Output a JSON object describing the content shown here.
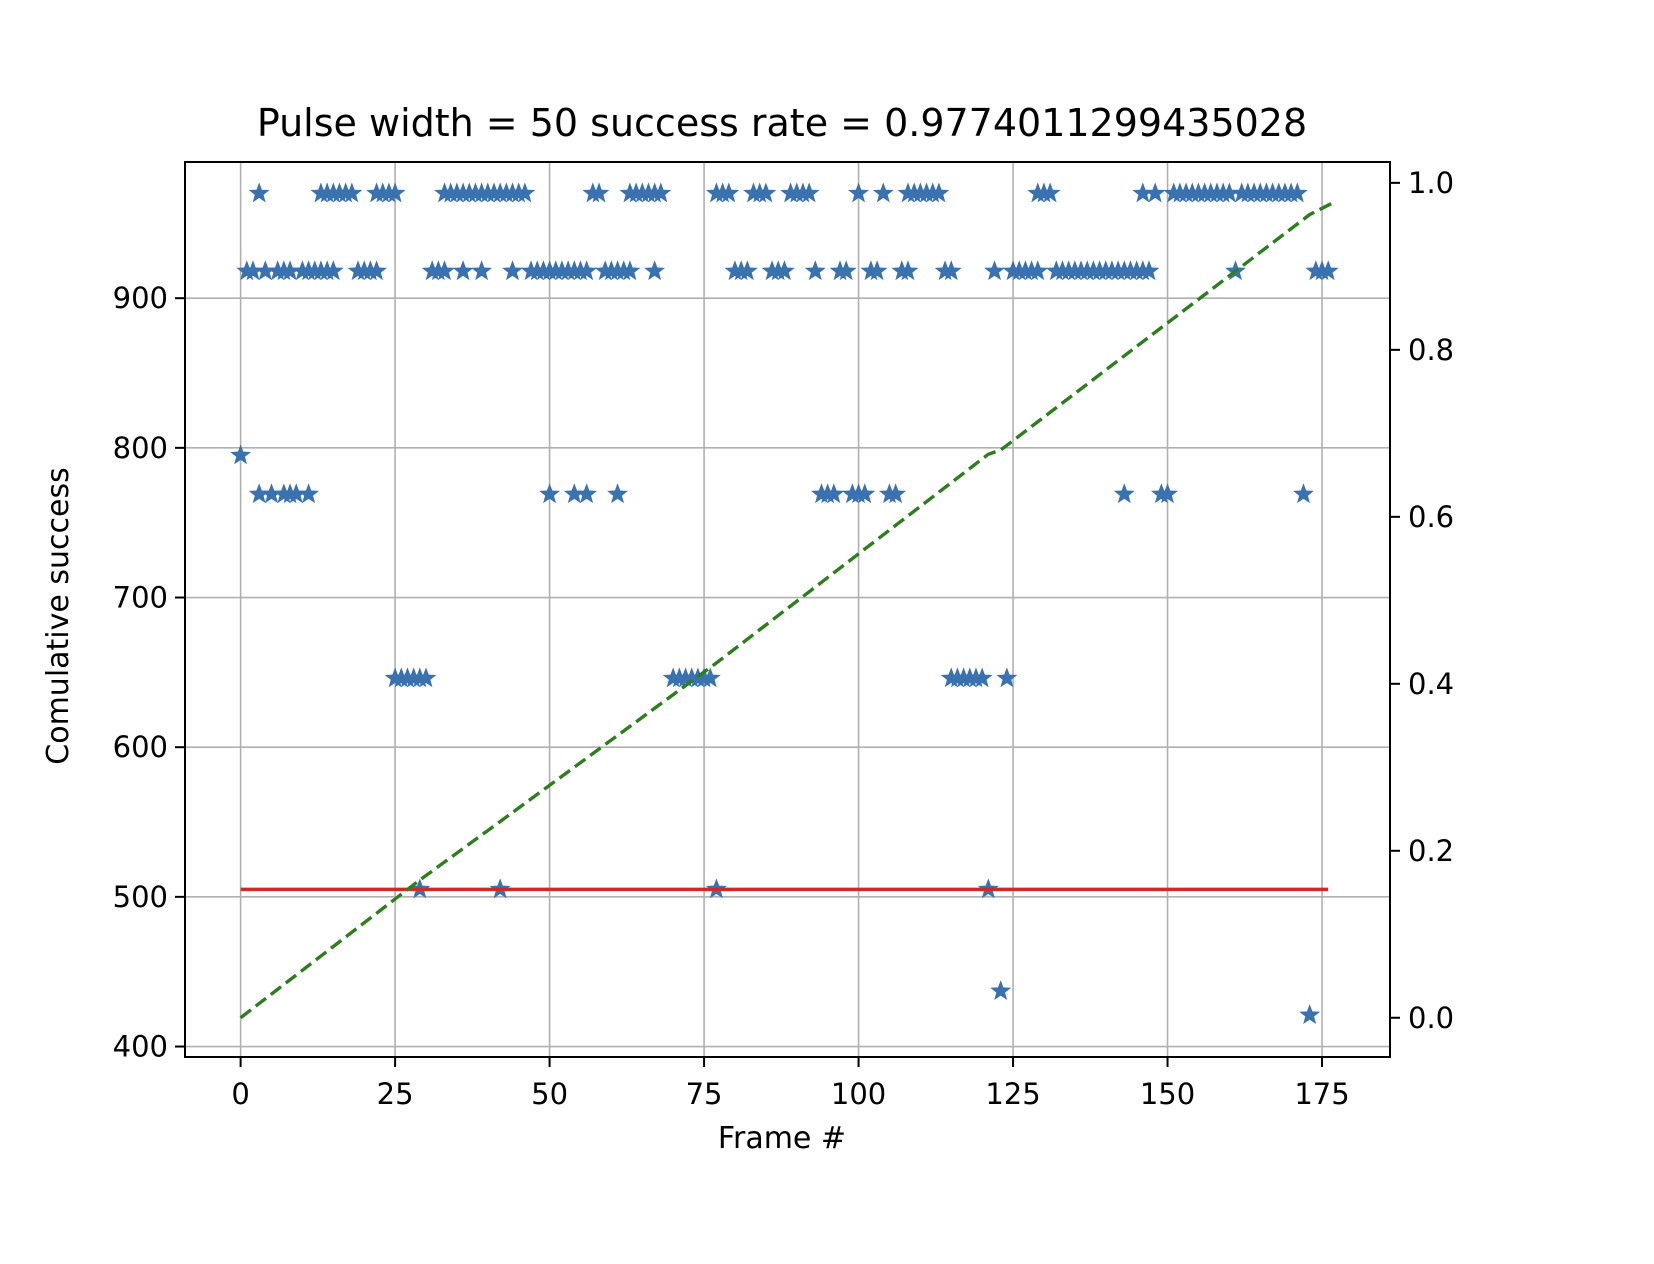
{
  "chart_data": {
    "type": "scatter",
    "title": "Pulse width =  50   success rate = 0.9774011299435028",
    "xlabel": "Frame #",
    "ylabel": "Comulative success",
    "y2label": "",
    "xlim": [
      -9,
      186
    ],
    "ylim": [
      393,
      991
    ],
    "y2lim": [
      -0.047,
      1.025
    ],
    "xticks": [
      0,
      25,
      50,
      75,
      100,
      125,
      150,
      175
    ],
    "yticks": [
      400,
      500,
      600,
      700,
      800,
      900
    ],
    "y2ticks": [
      0.0,
      0.2,
      0.4,
      0.6,
      0.8,
      1.0
    ],
    "xtick_labels": [
      "0",
      "25",
      "50",
      "75",
      "100",
      "125",
      "150",
      "175"
    ],
    "ytick_labels": [
      "400",
      "500",
      "600",
      "700",
      "800",
      "900"
    ],
    "y2tick_labels": [
      "0.0",
      "0.2",
      "0.4",
      "0.6",
      "0.8",
      "1.0"
    ],
    "grid": true,
    "legend": "none",
    "series": [
      {
        "axis": "left",
        "style": "star-markers",
        "color": "#3a72b0",
        "points": [
          [
            0,
            795
          ],
          [
            1,
            918
          ],
          [
            2,
            918
          ],
          [
            3,
            970
          ],
          [
            3,
            769
          ],
          [
            4,
            918
          ],
          [
            5,
            769
          ],
          [
            6,
            918
          ],
          [
            7,
            769
          ],
          [
            7,
            918
          ],
          [
            8,
            769
          ],
          [
            8,
            918
          ],
          [
            9,
            769
          ],
          [
            10,
            918
          ],
          [
            11,
            769
          ],
          [
            11,
            918
          ],
          [
            12,
            918
          ],
          [
            13,
            970
          ],
          [
            13,
            918
          ],
          [
            14,
            970
          ],
          [
            14,
            918
          ],
          [
            15,
            970
          ],
          [
            15,
            918
          ],
          [
            16,
            970
          ],
          [
            17,
            970
          ],
          [
            18,
            970
          ],
          [
            19,
            918
          ],
          [
            20,
            918
          ],
          [
            21,
            918
          ],
          [
            22,
            970
          ],
          [
            22,
            918
          ],
          [
            23,
            970
          ],
          [
            24,
            970
          ],
          [
            25,
            970
          ],
          [
            25,
            646
          ],
          [
            26,
            646
          ],
          [
            27,
            646
          ],
          [
            28,
            646
          ],
          [
            29,
            505
          ],
          [
            29,
            646
          ],
          [
            30,
            646
          ],
          [
            31,
            918
          ],
          [
            32,
            918
          ],
          [
            33,
            970
          ],
          [
            33,
            918
          ],
          [
            34,
            970
          ],
          [
            35,
            970
          ],
          [
            36,
            970
          ],
          [
            36,
            918
          ],
          [
            37,
            970
          ],
          [
            38,
            970
          ],
          [
            39,
            918
          ],
          [
            39,
            970
          ],
          [
            40,
            970
          ],
          [
            41,
            970
          ],
          [
            42,
            505
          ],
          [
            42,
            970
          ],
          [
            43,
            970
          ],
          [
            44,
            970
          ],
          [
            44,
            918
          ],
          [
            45,
            970
          ],
          [
            46,
            970
          ],
          [
            47,
            918
          ],
          [
            48,
            918
          ],
          [
            49,
            918
          ],
          [
            50,
            769
          ],
          [
            50,
            918
          ],
          [
            51,
            918
          ],
          [
            52,
            918
          ],
          [
            53,
            918
          ],
          [
            54,
            769
          ],
          [
            54,
            918
          ],
          [
            55,
            918
          ],
          [
            56,
            769
          ],
          [
            56,
            918
          ],
          [
            57,
            970
          ],
          [
            58,
            970
          ],
          [
            59,
            918
          ],
          [
            60,
            918
          ],
          [
            61,
            769
          ],
          [
            61,
            918
          ],
          [
            62,
            918
          ],
          [
            63,
            970
          ],
          [
            63,
            918
          ],
          [
            64,
            970
          ],
          [
            65,
            970
          ],
          [
            66,
            970
          ],
          [
            67,
            918
          ],
          [
            67,
            970
          ],
          [
            68,
            970
          ],
          [
            70,
            646
          ],
          [
            71,
            646
          ],
          [
            72,
            646
          ],
          [
            73,
            646
          ],
          [
            74,
            646
          ],
          [
            75,
            646
          ],
          [
            76,
            646
          ],
          [
            77,
            505
          ],
          [
            77,
            970
          ],
          [
            78,
            970
          ],
          [
            79,
            970
          ],
          [
            80,
            918
          ],
          [
            81,
            918
          ],
          [
            82,
            918
          ],
          [
            83,
            970
          ],
          [
            84,
            970
          ],
          [
            85,
            970
          ],
          [
            86,
            918
          ],
          [
            87,
            918
          ],
          [
            88,
            918
          ],
          [
            89,
            970
          ],
          [
            90,
            970
          ],
          [
            91,
            970
          ],
          [
            92,
            970
          ],
          [
            93,
            918
          ],
          [
            94,
            769
          ],
          [
            95,
            769
          ],
          [
            96,
            769
          ],
          [
            97,
            918
          ],
          [
            98,
            918
          ],
          [
            99,
            769
          ],
          [
            100,
            970
          ],
          [
            100,
            769
          ],
          [
            101,
            769
          ],
          [
            102,
            918
          ],
          [
            103,
            918
          ],
          [
            104,
            970
          ],
          [
            105,
            769
          ],
          [
            106,
            769
          ],
          [
            107,
            918
          ],
          [
            108,
            970
          ],
          [
            108,
            918
          ],
          [
            109,
            970
          ],
          [
            110,
            970
          ],
          [
            111,
            970
          ],
          [
            112,
            970
          ],
          [
            113,
            970
          ],
          [
            114,
            918
          ],
          [
            115,
            918
          ],
          [
            115,
            646
          ],
          [
            116,
            646
          ],
          [
            117,
            646
          ],
          [
            118,
            646
          ],
          [
            119,
            646
          ],
          [
            120,
            646
          ],
          [
            121,
            505
          ],
          [
            122,
            918
          ],
          [
            123,
            437
          ],
          [
            124,
            646
          ],
          [
            125,
            918
          ],
          [
            126,
            918
          ],
          [
            127,
            918
          ],
          [
            128,
            918
          ],
          [
            129,
            970
          ],
          [
            129,
            918
          ],
          [
            130,
            970
          ],
          [
            131,
            970
          ],
          [
            132,
            918
          ],
          [
            133,
            918
          ],
          [
            134,
            918
          ],
          [
            135,
            918
          ],
          [
            136,
            918
          ],
          [
            137,
            918
          ],
          [
            138,
            918
          ],
          [
            139,
            918
          ],
          [
            140,
            918
          ],
          [
            141,
            918
          ],
          [
            142,
            918
          ],
          [
            143,
            769
          ],
          [
            143,
            918
          ],
          [
            144,
            918
          ],
          [
            145,
            918
          ],
          [
            146,
            970
          ],
          [
            146,
            918
          ],
          [
            147,
            918
          ],
          [
            148,
            970
          ],
          [
            149,
            769
          ],
          [
            150,
            769
          ],
          [
            151,
            970
          ],
          [
            152,
            970
          ],
          [
            153,
            970
          ],
          [
            154,
            970
          ],
          [
            155,
            970
          ],
          [
            156,
            970
          ],
          [
            157,
            970
          ],
          [
            158,
            970
          ],
          [
            159,
            970
          ],
          [
            160,
            970
          ],
          [
            161,
            918
          ],
          [
            162,
            970
          ],
          [
            163,
            970
          ],
          [
            164,
            970
          ],
          [
            165,
            970
          ],
          [
            166,
            970
          ],
          [
            167,
            970
          ],
          [
            168,
            970
          ],
          [
            169,
            970
          ],
          [
            170,
            970
          ],
          [
            171,
            970
          ],
          [
            172,
            769
          ],
          [
            173,
            421
          ],
          [
            174,
            918
          ],
          [
            175,
            918
          ],
          [
            176,
            918
          ]
        ]
      },
      {
        "axis": "left",
        "style": "solid-line",
        "color": "#d62728",
        "points": [
          [
            0,
            505
          ],
          [
            176,
            505
          ]
        ]
      },
      {
        "axis": "right",
        "style": "dashed-line",
        "color": "#2e7d1e",
        "points": [
          [
            0,
            0.0
          ],
          [
            29,
            0.165
          ],
          [
            42,
            0.235
          ],
          [
            77,
            0.425
          ],
          [
            121,
            0.675
          ],
          [
            123,
            0.68
          ],
          [
            173,
            0.962
          ],
          [
            177,
            0.977
          ]
        ]
      }
    ]
  }
}
